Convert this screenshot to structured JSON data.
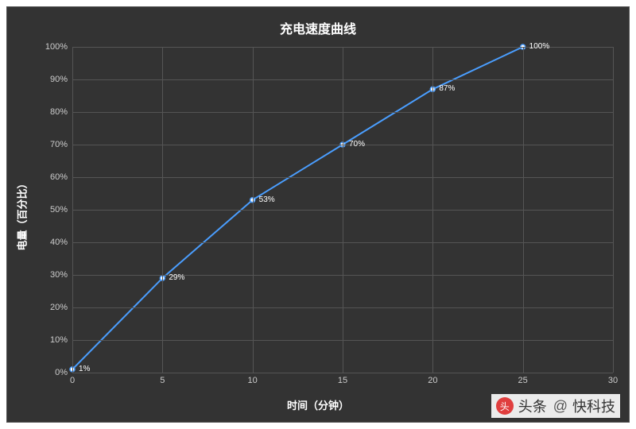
{
  "chart": {
    "type": "line",
    "title": "充电速度曲线",
    "title_fontsize": 16,
    "title_color": "#ffffff",
    "background_color": "#333333",
    "grid_color": "#555555",
    "x_axis": {
      "label": "时间（分钟）",
      "label_fontsize": 13,
      "label_color": "#ffffff",
      "tick_color": "#cccccc",
      "tick_fontsize": 11,
      "min": 0,
      "max": 30,
      "step": 5,
      "ticks": [
        0,
        5,
        10,
        15,
        20,
        25,
        30
      ]
    },
    "y_axis": {
      "label": "电量（百分比）",
      "label_fontsize": 13,
      "label_color": "#ffffff",
      "tick_color": "#cccccc",
      "tick_fontsize": 11,
      "min": 0,
      "max": 100,
      "step": 10,
      "ticks": [
        0,
        10,
        20,
        30,
        40,
        50,
        60,
        70,
        80,
        90,
        100
      ],
      "suffix": "%"
    },
    "series": {
      "line_color": "#4a9eff",
      "line_width": 2,
      "marker_color": "#ffffff",
      "marker_border": "#4a9eff",
      "marker_radius": 3,
      "label_color": "#ffffff",
      "label_fontsize": 10,
      "points": [
        {
          "x": 0,
          "y": 1,
          "label": "1%"
        },
        {
          "x": 5,
          "y": 29,
          "label": "29%"
        },
        {
          "x": 10,
          "y": 53,
          "label": "53%"
        },
        {
          "x": 15,
          "y": 70,
          "label": "70%"
        },
        {
          "x": 20,
          "y": 87,
          "label": "87%"
        },
        {
          "x": 25,
          "y": 100,
          "label": "100%"
        }
      ]
    }
  },
  "watermark": {
    "icon_text": "头",
    "prefix": "头条",
    "at": "@",
    "name": "快科技"
  }
}
